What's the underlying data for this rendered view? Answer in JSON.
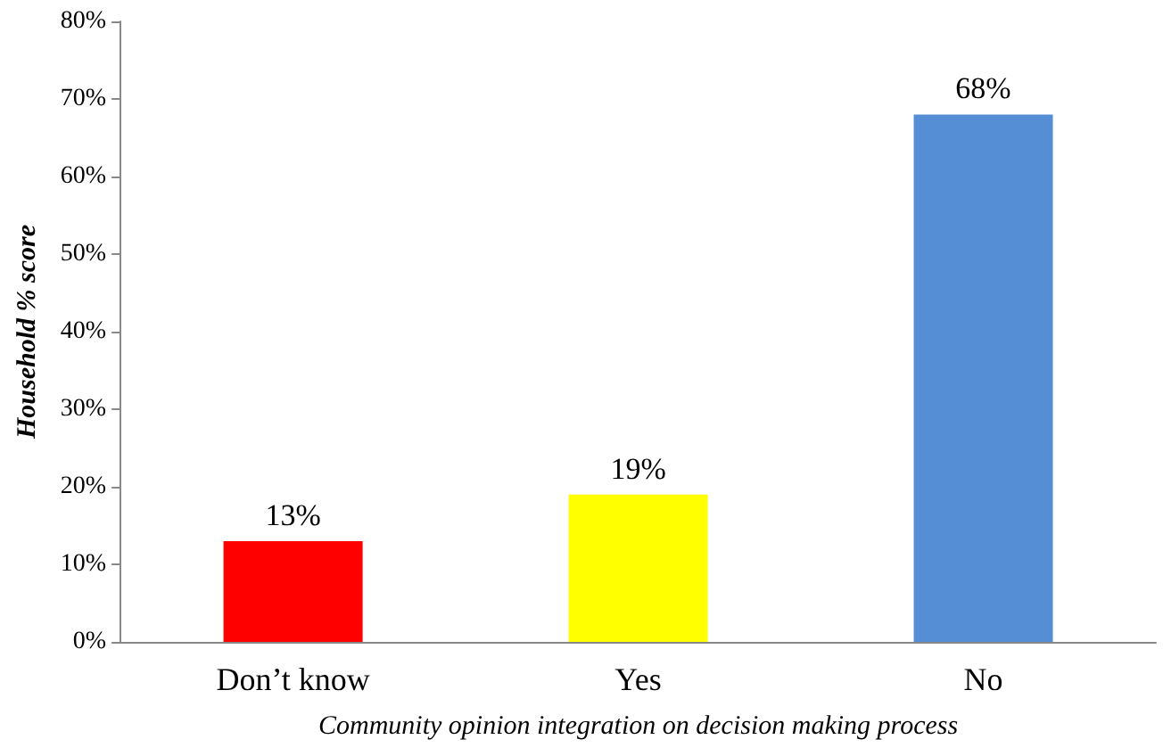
{
  "chart_data": {
    "type": "bar",
    "xlabel": "Community opinion integration on decision making process",
    "ylabel": "Household % score",
    "categories": [
      "Don’t know",
      "Yes",
      "No"
    ],
    "values": [
      13,
      19,
      68
    ],
    "colors": [
      "#ff0000",
      "#ffff00",
      "#558ed5"
    ],
    "value_labels": [
      "13%",
      "19%",
      "68%"
    ],
    "ylim": [
      0,
      80
    ],
    "yticks": [
      {
        "value": 0,
        "label": "0%"
      },
      {
        "value": 10,
        "label": "10%"
      },
      {
        "value": 20,
        "label": "20%"
      },
      {
        "value": 30,
        "label": "30%"
      },
      {
        "value": 40,
        "label": "40%"
      },
      {
        "value": 50,
        "label": "50%"
      },
      {
        "value": 60,
        "label": "60%"
      },
      {
        "value": 70,
        "label": "70%"
      },
      {
        "value": 80,
        "label": "80%"
      }
    ],
    "grid": false
  }
}
